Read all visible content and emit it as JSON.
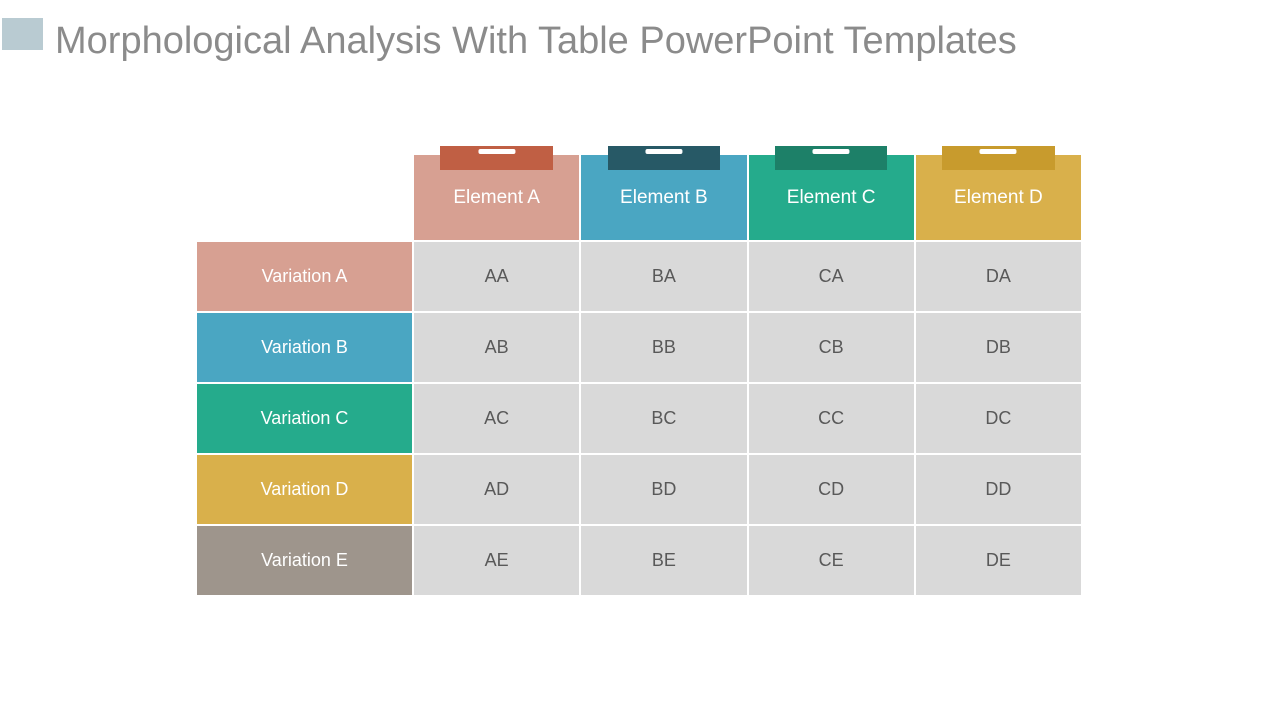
{
  "slide": {
    "title": "Morphological Analysis With Table PowerPoint Templates",
    "title_color": "#8b8b8b",
    "accent_square_color": "#b9cbd2",
    "background_color": "#ffffff"
  },
  "table": {
    "columns": [
      {
        "label": "Element A",
        "color": "#d7a092",
        "clip_color": "#c05f44"
      },
      {
        "label": "Element B",
        "color": "#4aa6c2",
        "clip_color": "#275966"
      },
      {
        "label": "Element C",
        "color": "#25ab8c",
        "clip_color": "#1d8068"
      },
      {
        "label": "Element D",
        "color": "#d9b04b",
        "clip_color": "#c89b2d"
      }
    ],
    "rows": [
      {
        "label": "Variation A",
        "color": "#d7a092",
        "cells": [
          "AA",
          "BA",
          "CA",
          "DA"
        ]
      },
      {
        "label": "Variation B",
        "color": "#4aa6c2",
        "cells": [
          "AB",
          "BB",
          "CB",
          "DB"
        ]
      },
      {
        "label": "Variation C",
        "color": "#25ab8c",
        "cells": [
          "AC",
          "BC",
          "CC",
          "DC"
        ]
      },
      {
        "label": "Variation D",
        "color": "#d9b04b",
        "cells": [
          "AD",
          "BD",
          "CD",
          "DD"
        ]
      },
      {
        "label": "Variation E",
        "color": "#9e958c",
        "cells": [
          "AE",
          "BE",
          "CE",
          "DE"
        ]
      }
    ],
    "cell_bg": "#d9d9d9",
    "cell_text_color": "#595959",
    "gridline_color": "#ffffff"
  }
}
